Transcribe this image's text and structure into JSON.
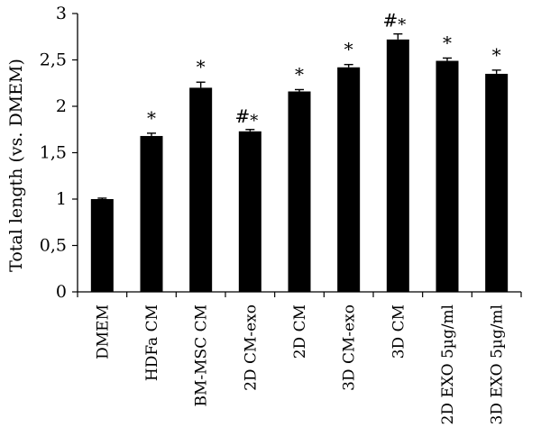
{
  "chart_data": {
    "type": "bar",
    "categories": [
      "DMEM",
      "HDFa CM",
      "BM-MSC CM",
      "2D CM-exo",
      "2D CM",
      "3D CM-exo",
      "3D CM",
      "2D EXO 5µg/ml",
      "3D EXO 5µg/ml"
    ],
    "values": [
      1.0,
      1.68,
      2.2,
      1.73,
      2.16,
      2.42,
      2.72,
      2.49,
      2.35
    ],
    "errors": [
      0.01,
      0.03,
      0.06,
      0.02,
      0.02,
      0.03,
      0.06,
      0.03,
      0.04
    ],
    "annotations": [
      "",
      "*",
      "*",
      "#*",
      "*",
      "*",
      "#*",
      "*",
      "*"
    ],
    "ylabel": "Total length (vs. DMEM)",
    "xlabel": "",
    "ylim": [
      0,
      3
    ],
    "yticks": [
      0,
      0.5,
      1,
      1.5,
      2,
      2.5,
      3
    ],
    "ytick_labels": [
      "0",
      "0,5",
      "1",
      "1,5",
      "2",
      "2,5",
      "3"
    ],
    "bar_color": "#000000",
    "grid": false,
    "legend": "none"
  }
}
